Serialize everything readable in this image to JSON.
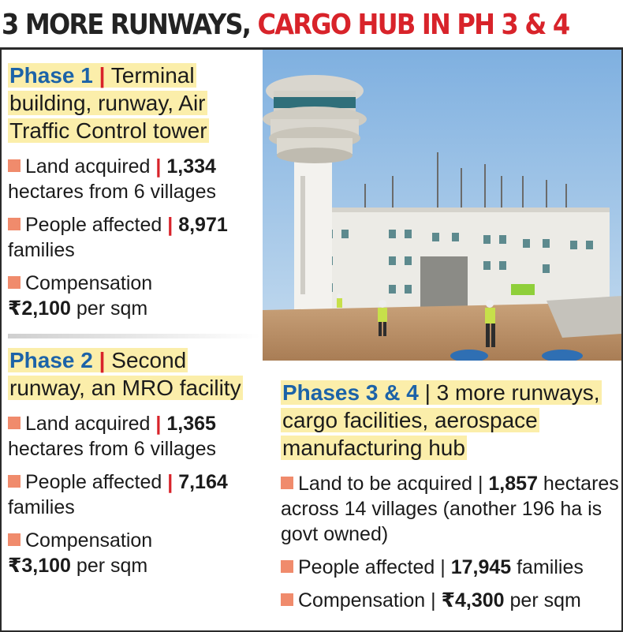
{
  "headline": {
    "dark_part": "3 MORE RUNWAYS,",
    "red_part": "CARGO HUB IN PH 3 & 4"
  },
  "phase1": {
    "name": "Phase 1",
    "separator": "|",
    "description": "Terminal building, runway, Air Traffic Control tower",
    "land_label": "Land acquired",
    "land_value": "1,334",
    "land_suffix": "hectares from 6 villages",
    "people_label": "People affected",
    "people_value": "8,971",
    "people_suffix": "families",
    "comp_label": "Compensation",
    "comp_value": "₹2,100",
    "comp_suffix": "per sqm"
  },
  "phase2": {
    "name": "Phase 2",
    "separator": "|",
    "description": "Second runway, an MRO facility",
    "land_label": "Land acquired",
    "land_value": "1,365",
    "land_suffix": "hectares from 6 villages",
    "people_label": "People affected",
    "people_value": "7,164",
    "people_suffix": "families",
    "comp_label": "Compensation",
    "comp_value": "₹3,100",
    "comp_suffix": "per sqm"
  },
  "phase34": {
    "name": "Phases 3 & 4",
    "separator": "|",
    "description": "3 more runways, cargo facilities, aerospace manufacturing hub",
    "land_label": "Land to be acquired |",
    "land_value": "1,857",
    "land_suffix": "hectares across 14 villages (another 196 ha is govt owned)",
    "people_label": "People affected |",
    "people_value": "17,945",
    "people_suffix": "families",
    "comp_label": "Compensation |",
    "comp_value": "₹4,300",
    "comp_suffix": "per sqm"
  },
  "colors": {
    "headline_red": "#d8232a",
    "phase_blue": "#1c63a8",
    "highlight_yellow": "#fbeeaa",
    "bullet_salmon": "#f08b6c"
  },
  "photo": {
    "subject": "airport air traffic control tower and terminal building under construction with workers in safety vests"
  }
}
